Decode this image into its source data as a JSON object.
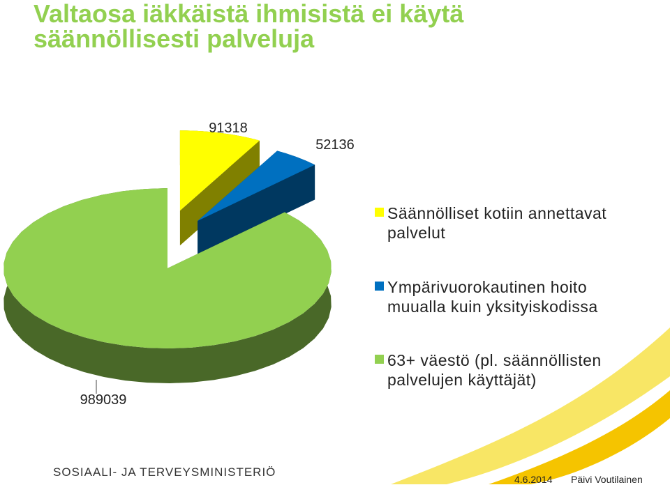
{
  "chart_data": {
    "type": "pie",
    "title": "Valtaosa iäkkäistä ihmisistä ei käytä säännöllisesti palveluja",
    "series": [
      {
        "name": "Säännölliset kotiin annettavat palvelut",
        "color": "#ffff00",
        "values": [
          91318
        ]
      },
      {
        "name": "Ympärivuorokautinen hoito muualla kuin yksityiskodissa",
        "color": "#0070c0",
        "values": [
          52136
        ]
      },
      {
        "name": "63+ väestö (pl. säännöllisten palvelujen käyttäjät)",
        "color": "#92d050",
        "values": [
          989039
        ]
      }
    ],
    "legend": "right"
  },
  "footer": {
    "organization": "SOSIAALI- JA TERVEYSMINISTERIÖ",
    "date": "4.6.2014",
    "author": "Päivi Voutilainen"
  }
}
